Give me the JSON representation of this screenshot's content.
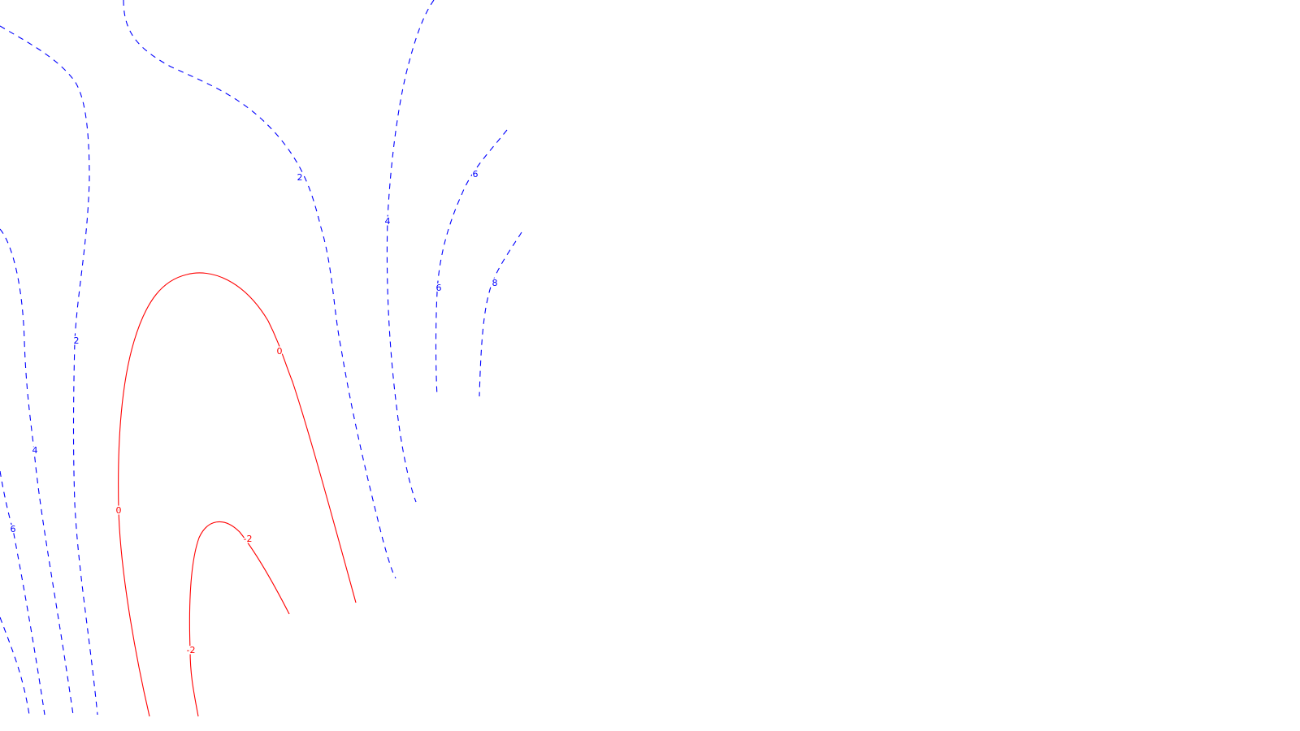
{
  "chart_data": {
    "type": "contour",
    "title": "",
    "xlabel": "",
    "ylabel": "",
    "grid": false,
    "legend": "none",
    "colors": {
      "positive": "#0000ff",
      "zero_and_negative": "#ff0000",
      "background": "#ffffff"
    },
    "line_styles": {
      "positive": "dashed",
      "zero_and_negative": "solid"
    },
    "levels": [
      -2,
      0,
      2,
      4,
      6,
      8
    ],
    "contour_labels": [
      {
        "level": 2,
        "text": "2"
      },
      {
        "level": 2,
        "text": "2"
      },
      {
        "level": 4,
        "text": "4"
      },
      {
        "level": 4,
        "text": "4"
      },
      {
        "level": 6,
        "text": "6"
      },
      {
        "level": 6,
        "text": "6"
      },
      {
        "level": 6,
        "text": "6"
      },
      {
        "level": 8,
        "text": "8"
      },
      {
        "level": 0,
        "text": "0"
      },
      {
        "level": 0,
        "text": "0"
      },
      {
        "level": -2,
        "text": "-2"
      },
      {
        "level": -2,
        "text": "-2"
      }
    ]
  }
}
